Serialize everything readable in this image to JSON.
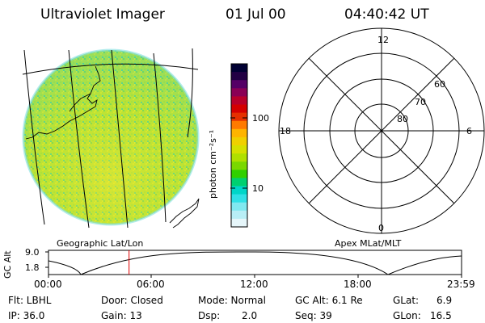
{
  "header": {
    "instrument": "Ultraviolet Imager",
    "date": "01 Jul 00",
    "time": "04:40:42 UT"
  },
  "colorbar": {
    "unit_label": "photon cm⁻²s⁻¹",
    "ticks": [
      "100",
      "10"
    ],
    "colors": [
      "#000033",
      "#220044",
      "#550066",
      "#8a0055",
      "#b8002a",
      "#d40000",
      "#e53000",
      "#ff7a00",
      "#ffb400",
      "#f0d000",
      "#d6e000",
      "#b0e000",
      "#7ad800",
      "#30d000",
      "#00d070",
      "#00d6c8",
      "#30e0e6",
      "#80e8f0",
      "#b8eef6",
      "#e6f6fa"
    ]
  },
  "map_left": {
    "label": "Geographic Lat/Lon"
  },
  "map_right": {
    "label": "Apex MLat/MLT",
    "mlt_labels": [
      "12",
      "18",
      "6",
      "0"
    ],
    "lat_labels": [
      "60",
      "70",
      "80"
    ]
  },
  "altitude_plot": {
    "ylabel": "GC Alt",
    "yticks": [
      "9.0",
      "1.8"
    ],
    "xticks": [
      "00:00",
      "06:00",
      "12:00",
      "18:00",
      "23:59"
    ],
    "marker_time_hours": 4.68
  },
  "info": {
    "flt": "Flt: LBHL",
    "ip": "IP: 36.0",
    "door": "Door: Closed",
    "gain": "Gain: 13",
    "mode": "Mode: Normal",
    "dsp_label": "Dsp:",
    "dsp_value": "2.0",
    "gc_alt": "GC Alt: 6.1 Re",
    "seq": "Seq: 39",
    "glat_label": "GLat:",
    "glat_value": "6.9",
    "glon_label": "GLon:",
    "glon_value": "16.5"
  }
}
